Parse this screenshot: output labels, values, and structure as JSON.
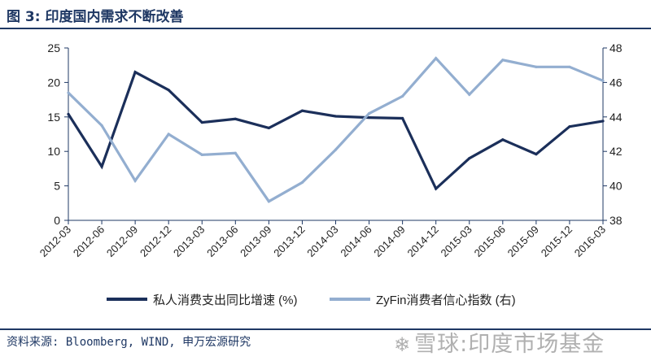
{
  "header": {
    "title": "图 3: 印度国内需求不断改善"
  },
  "footer": {
    "source": "资料来源: Bloomberg, WIND, 申万宏源研究",
    "watermark": "雪球:印度市场基金"
  },
  "colors": {
    "series1": "#1b2f5a",
    "series2": "#93aed0",
    "frame": "#1f3864"
  },
  "chart_data": {
    "type": "line",
    "x": [
      "2012-03",
      "2012-06",
      "2012-09",
      "2012-12",
      "2013-03",
      "2013-06",
      "2013-09",
      "2013-12",
      "2014-03",
      "2014-06",
      "2014-09",
      "2014-12",
      "2015-03",
      "2015-06",
      "2015-09",
      "2015-12",
      "2016-03"
    ],
    "series": [
      {
        "name": "私人消费支出同比增速 (%)",
        "axis": "left",
        "color": "#1b2f5a",
        "values": [
          15.4,
          7.8,
          21.5,
          18.9,
          14.2,
          14.7,
          13.4,
          15.9,
          15.1,
          14.9,
          14.8,
          4.6,
          9.0,
          11.7,
          9.6,
          13.6,
          14.4
        ]
      },
      {
        "name": "ZyFin消费者信心指数 (右)",
        "axis": "right",
        "color": "#93aed0",
        "values": [
          45.4,
          43.5,
          40.3,
          43.0,
          41.8,
          41.9,
          39.1,
          40.2,
          42.1,
          44.2,
          45.2,
          47.4,
          45.3,
          47.3,
          46.9,
          46.9,
          46.1
        ]
      }
    ],
    "yleft": {
      "lim": [
        0,
        25
      ],
      "ticks": [
        "0",
        "5",
        "10",
        "15",
        "20",
        "25"
      ]
    },
    "yright": {
      "lim": [
        38,
        48
      ],
      "ticks": [
        "38",
        "40",
        "42",
        "44",
        "46",
        "48"
      ]
    },
    "legend": "bottom",
    "grid": false
  }
}
